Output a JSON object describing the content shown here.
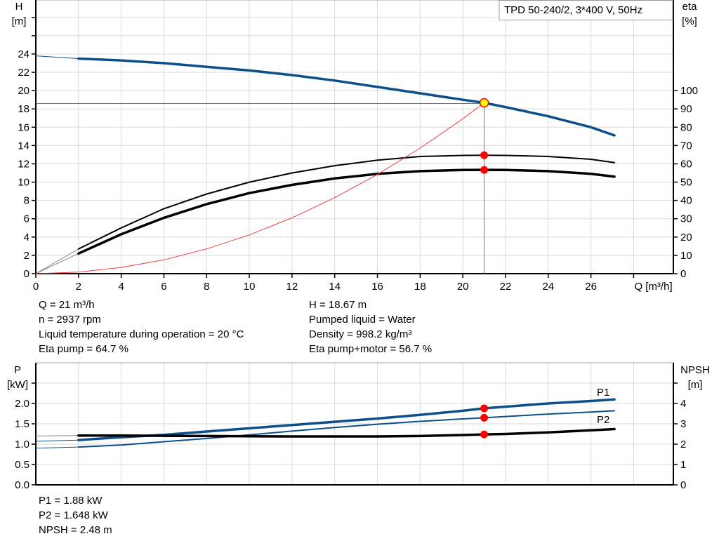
{
  "chart_data": [
    {
      "type": "line",
      "title": "TPD 50-240/2, 3*400 V, 50Hz",
      "xlabel": "Q [m³/h]",
      "ylabel": "H\n[m]",
      "y2label": "eta\n[%]",
      "xlim": [
        0,
        29.86
      ],
      "ylim": [
        0,
        29.9
      ],
      "y2lim": [
        0,
        149.5
      ],
      "xticks": [
        0,
        2,
        4,
        6,
        8,
        10,
        12,
        14,
        16,
        18,
        20,
        22,
        24,
        26
      ],
      "yticks": [
        0,
        2,
        4,
        6,
        8,
        10,
        12,
        14,
        16,
        18,
        20,
        22,
        24
      ],
      "y2ticks": [
        0,
        10,
        20,
        30,
        40,
        50,
        60,
        70,
        80,
        90,
        100
      ],
      "grid": true,
      "colors": {
        "head": "#0d4f8b",
        "eta": "#000000",
        "system": "#ff3b3b",
        "marker": "#ff0000",
        "duty_marker": "#ffff00"
      },
      "series": [
        {
          "key": "H",
          "axis": "left",
          "x": [
            2,
            4,
            6,
            8,
            10,
            12,
            14,
            16,
            18,
            20,
            21,
            22,
            24,
            26,
            27.1
          ],
          "y": [
            23.5,
            23.3,
            23.0,
            22.6,
            22.2,
            21.7,
            21.1,
            20.4,
            19.7,
            19.0,
            18.67,
            18.2,
            17.2,
            16.0,
            15.1
          ],
          "extrapolated": {
            "x": [
              0,
              2
            ],
            "y": [
              23.8,
              23.5
            ]
          }
        },
        {
          "key": "eta_pump",
          "axis": "right",
          "x": [
            2,
            4,
            6,
            8,
            10,
            12,
            14,
            16,
            18,
            20,
            21,
            22,
            24,
            26,
            27.1
          ],
          "y": [
            13.5,
            25,
            35.5,
            43.5,
            50,
            55,
            59,
            62,
            64,
            64.6,
            64.7,
            64.6,
            64,
            62.5,
            60.7
          ],
          "extrapolated": {
            "x": [
              0,
              2
            ],
            "y": [
              0,
              13.5
            ]
          }
        },
        {
          "key": "eta_pump_motor",
          "axis": "right",
          "x": [
            2,
            4,
            6,
            8,
            10,
            12,
            14,
            16,
            18,
            20,
            21,
            22,
            24,
            26,
            27.1
          ],
          "y": [
            11,
            21.5,
            30.5,
            38,
            44,
            48.5,
            52,
            54.5,
            56,
            56.6,
            56.7,
            56.6,
            56,
            54.5,
            53
          ],
          "extrapolated": {
            "x": [
              0,
              2
            ],
            "y": [
              0,
              11
            ]
          }
        },
        {
          "key": "system",
          "axis": "left",
          "x": [
            0,
            2,
            4,
            6,
            8,
            10,
            12,
            14,
            16,
            18,
            20,
            21
          ],
          "y": [
            0,
            0.17,
            0.68,
            1.52,
            2.71,
            4.23,
            6.1,
            8.3,
            10.84,
            13.72,
            16.93,
            18.67
          ]
        }
      ],
      "duty_point": {
        "Q": 21,
        "H": 18.67,
        "eta_pump": 64.7,
        "eta_pump_motor": 56.7
      }
    },
    {
      "type": "line",
      "ylabel": "P\n[kW]",
      "y2label": "NPSH\n[m]",
      "xlim": [
        0,
        29.86
      ],
      "ylim": [
        0,
        3.0
      ],
      "y2lim": [
        0,
        6.0
      ],
      "yticks": [
        0.0,
        0.5,
        1.0,
        1.5,
        2.0
      ],
      "y2ticks": [
        0,
        1,
        2,
        3,
        4
      ],
      "grid": true,
      "colors": {
        "P1": "#0d4f8b",
        "P2": "#0d4f8b",
        "NPSH": "#000000",
        "marker": "#ff0000"
      },
      "series": [
        {
          "name": "P1",
          "axis": "left",
          "x": [
            2,
            4,
            6,
            8,
            10,
            12,
            14,
            16,
            18,
            20,
            21,
            22,
            24,
            26,
            27.1
          ],
          "y": [
            1.1,
            1.17,
            1.23,
            1.31,
            1.39,
            1.47,
            1.55,
            1.63,
            1.72,
            1.82,
            1.88,
            1.92,
            2.0,
            2.06,
            2.1
          ],
          "extrapolated": {
            "x": [
              0,
              2
            ],
            "y": [
              1.07,
              1.1
            ]
          }
        },
        {
          "name": "P2",
          "axis": "left",
          "x": [
            2,
            4,
            6,
            8,
            10,
            12,
            14,
            16,
            18,
            20,
            21,
            22,
            24,
            26,
            27.1
          ],
          "y": [
            0.93,
            0.98,
            1.06,
            1.14,
            1.23,
            1.32,
            1.41,
            1.49,
            1.56,
            1.62,
            1.648,
            1.68,
            1.74,
            1.79,
            1.82
          ],
          "extrapolated": {
            "x": [
              0,
              2
            ],
            "y": [
              0.9,
              0.93
            ]
          }
        },
        {
          "key": "NPSH",
          "axis": "right",
          "x": [
            2,
            4,
            6,
            8,
            10,
            12,
            14,
            16,
            18,
            20,
            21,
            22,
            24,
            26,
            27.1
          ],
          "y": [
            2.42,
            2.42,
            2.41,
            2.4,
            2.39,
            2.38,
            2.38,
            2.38,
            2.4,
            2.45,
            2.48,
            2.5,
            2.58,
            2.68,
            2.74
          ],
          "extrapolated": {
            "x": [
              0,
              2
            ],
            "y": [
              2.4,
              2.42
            ]
          }
        }
      ],
      "duty_point": {
        "Q": 21,
        "P1": 1.88,
        "P2": 1.648,
        "NPSH": 2.48
      }
    }
  ],
  "info_top": {
    "left": [
      "Q = 21 m³/h",
      "n = 2937 rpm",
      "Liquid temperature during operation = 20 °C",
      "Eta pump = 64.7 %"
    ],
    "right": [
      "H = 18.67 m",
      "Pumped liquid = Water",
      "Density = 998.2 kg/m³",
      "Eta pump+motor = 56.7 %"
    ]
  },
  "info_bottom": [
    "P1 = 1.88 kW",
    "P2 = 1.648 kW",
    "NPSH = 2.48 m"
  ]
}
